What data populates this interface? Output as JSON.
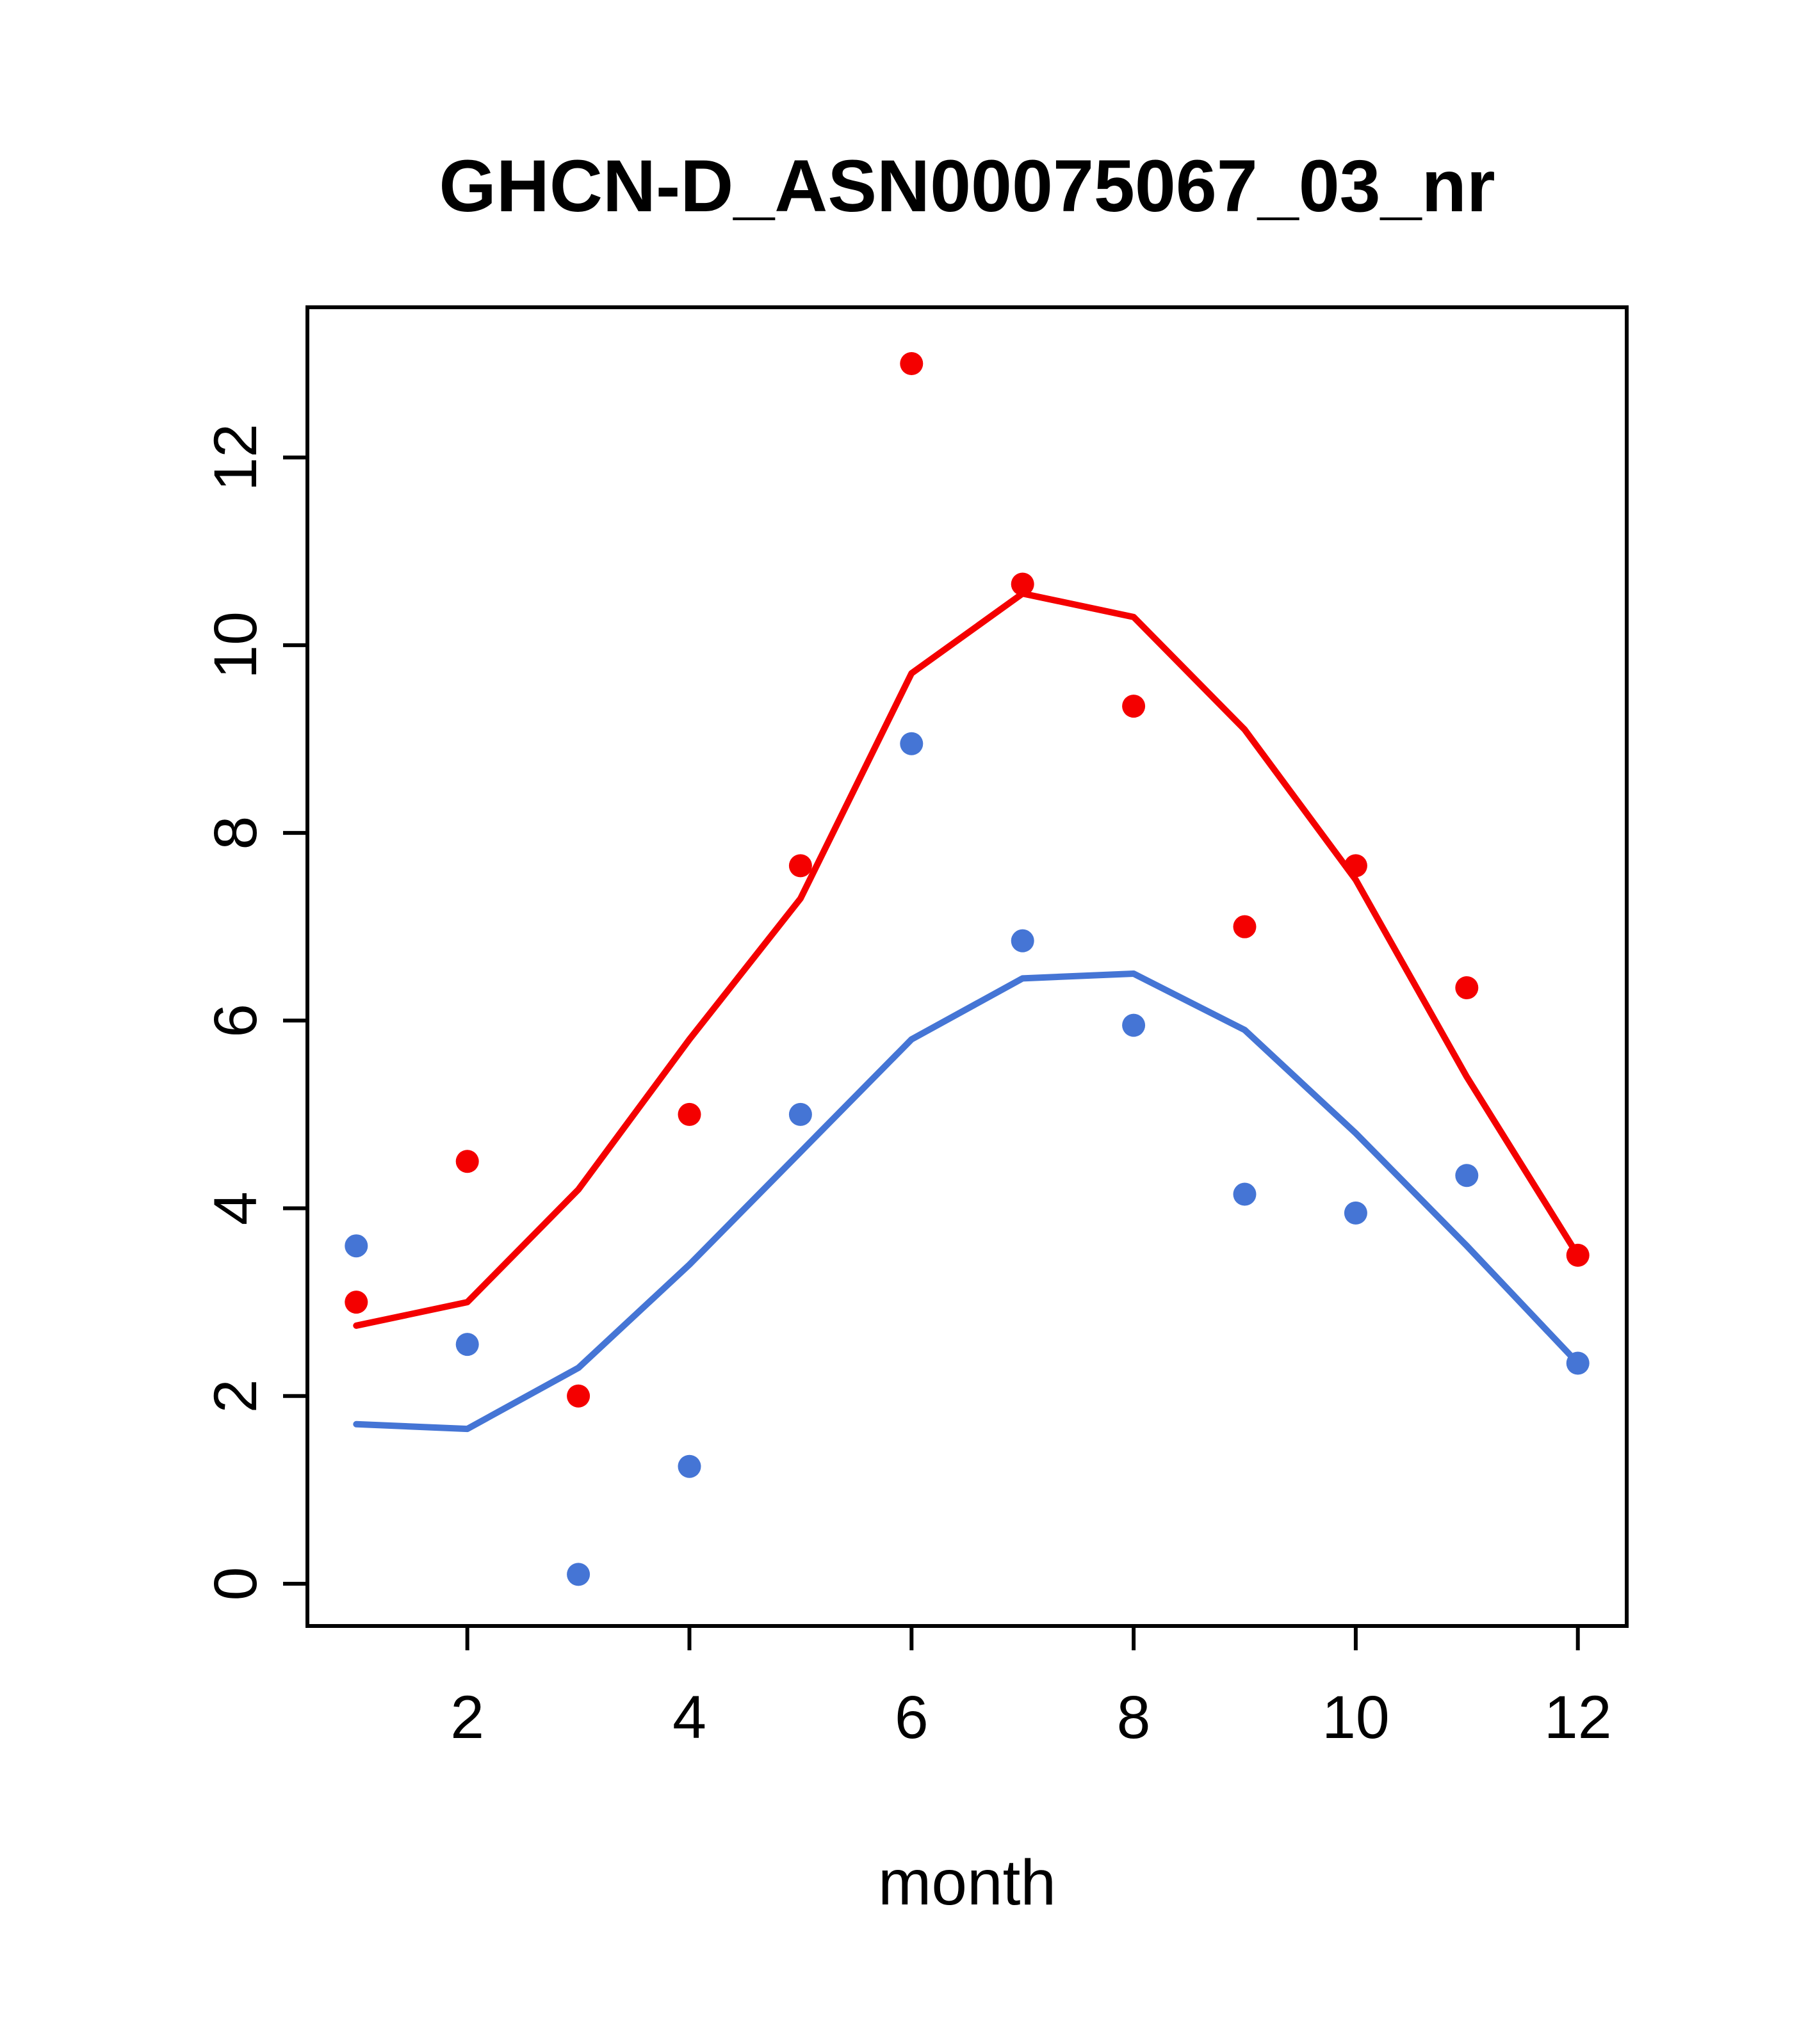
{
  "page": {
    "title": "GHCN-D_ASN00075067_03_nr"
  },
  "chart_data": {
    "type": "scatter",
    "title": "GHCN-D_ASN00075067_03_nr",
    "xlabel": "month",
    "ylabel": "",
    "x": [
      1,
      2,
      3,
      4,
      5,
      6,
      7,
      8,
      9,
      10,
      11,
      12
    ],
    "xlim": [
      0.56,
      12.44
    ],
    "ylim": [
      -0.45,
      13.6
    ],
    "xticks": [
      2,
      4,
      6,
      8,
      10,
      12
    ],
    "yticks": [
      0,
      2,
      4,
      6,
      8,
      10,
      12
    ],
    "grid": false,
    "legend": "none",
    "colors": {
      "red": "#f40000",
      "blue": "#4575d5"
    },
    "series": [
      {
        "name": "blue-line",
        "kind": "line",
        "color": "#4575d5",
        "values": [
          1.7,
          1.65,
          2.3,
          3.4,
          4.6,
          5.8,
          6.45,
          6.5,
          5.9,
          4.8,
          3.6,
          2.35
        ]
      },
      {
        "name": "red-line",
        "kind": "line",
        "color": "#f40000",
        "values": [
          2.75,
          3.0,
          4.2,
          5.8,
          7.3,
          9.7,
          10.55,
          10.3,
          9.1,
          7.5,
          5.4,
          3.5
        ]
      },
      {
        "name": "blue-points",
        "kind": "points",
        "color": "#4575d5",
        "values": [
          3.6,
          2.55,
          0.1,
          1.25,
          5.0,
          8.95,
          6.85,
          5.95,
          4.15,
          3.95,
          4.35,
          2.35
        ]
      },
      {
        "name": "red-points",
        "kind": "points",
        "color": "#f40000",
        "values": [
          3.0,
          4.5,
          2.0,
          5.0,
          7.65,
          13.0,
          10.65,
          9.35,
          7.0,
          7.65,
          6.35,
          3.5
        ]
      }
    ]
  }
}
